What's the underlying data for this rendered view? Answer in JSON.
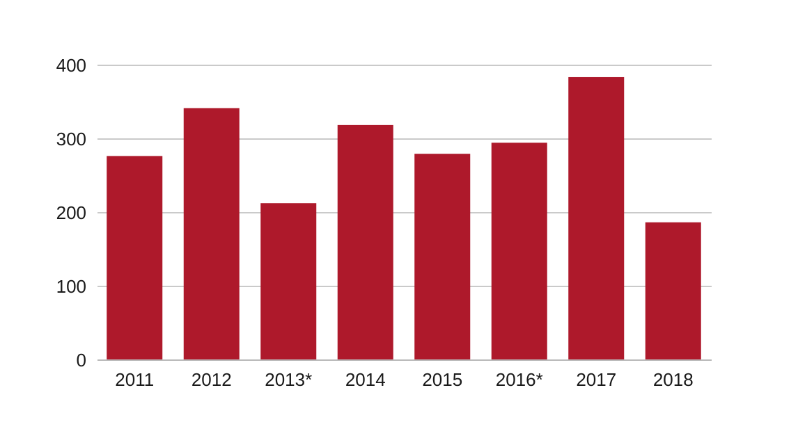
{
  "chart_data": {
    "type": "bar",
    "title": "",
    "xlabel": "",
    "ylabel": "",
    "categories": [
      "2011",
      "2012",
      "2013*",
      "2014",
      "2015",
      "2016*",
      "2017",
      "2018"
    ],
    "values": [
      277,
      342,
      213,
      319,
      280,
      295,
      384,
      187
    ],
    "ylim": [
      0,
      400
    ],
    "yticks": [
      0,
      100,
      200,
      300,
      400
    ],
    "ytick_labels": [
      "0",
      "100",
      "200",
      "300",
      "400"
    ],
    "grid": true,
    "legend": "none",
    "colors": {
      "bar": "#ae192b",
      "grid": "#b9b9b9",
      "axis": "#b9b9b9",
      "text": "#1a1a1a"
    }
  }
}
